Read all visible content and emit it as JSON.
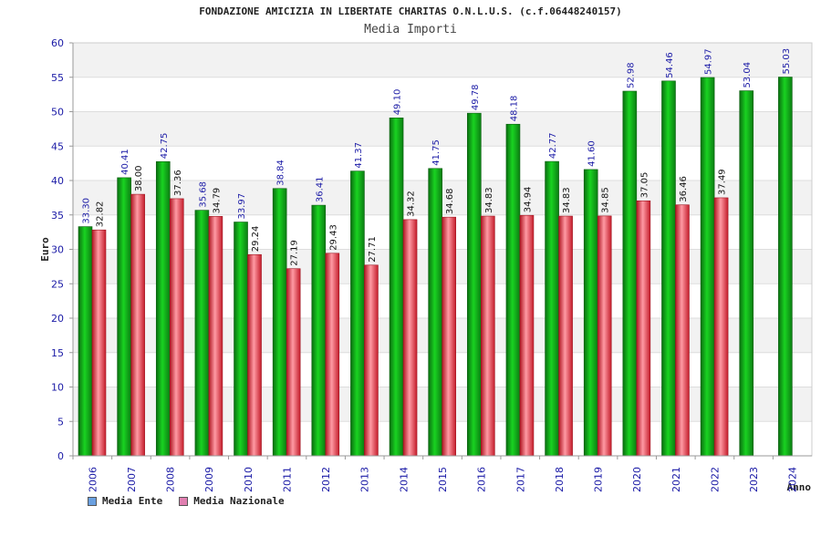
{
  "header": {
    "title": "FONDAZIONE AMICIZIA IN LIBERTATE CHARITAS O.N.L.U.S. (c.f.06448240157)",
    "subtitle": "Media Importi"
  },
  "legend": {
    "items": [
      {
        "label": "Media Ente",
        "color": "#6aa0e0"
      },
      {
        "label": "Media Nazionale",
        "color": "#e07fb0"
      }
    ]
  },
  "colors": {
    "ente_bar": "#13b51b",
    "nazionale_bar": "#ee3344",
    "axis_text": "#1a1aa6",
    "band": "#f2f2f2"
  },
  "chart_data": {
    "type": "bar",
    "title": "FONDAZIONE AMICIZIA IN LIBERTATE CHARITAS O.N.L.U.S. (c.f.06448240157)",
    "subtitle": "Media Importi",
    "xlabel": "Anno",
    "ylabel": "Euro",
    "ylim": [
      0,
      60
    ],
    "yticks": [
      0,
      5,
      10,
      15,
      20,
      25,
      30,
      35,
      40,
      45,
      50,
      55,
      60
    ],
    "grid": true,
    "legend_position": "bottom-left",
    "categories": [
      "2006",
      "2007",
      "2008",
      "2009",
      "2010",
      "2011",
      "2012",
      "2013",
      "2014",
      "2015",
      "2016",
      "2017",
      "2018",
      "2019",
      "2020",
      "2021",
      "2022",
      "2023",
      "2024"
    ],
    "series": [
      {
        "name": "Media Ente",
        "values": [
          33.3,
          40.41,
          42.75,
          35.68,
          33.97,
          38.84,
          36.41,
          41.37,
          49.1,
          41.75,
          49.78,
          48.18,
          42.77,
          41.6,
          52.98,
          54.46,
          54.97,
          53.04,
          55.03
        ],
        "labels": [
          "33.30",
          "40.41",
          "42.75",
          "35.68",
          "33.97",
          "38.84",
          "36.41",
          "41.37",
          "49.10",
          "41.75",
          "49.78",
          "48.18",
          "42.77",
          "41.60",
          "52.98",
          "54.46",
          "54.97",
          "53.04",
          "55.03"
        ]
      },
      {
        "name": "Media Nazionale",
        "values": [
          32.82,
          38.0,
          37.36,
          34.79,
          29.24,
          27.19,
          29.43,
          27.71,
          34.32,
          34.68,
          34.83,
          34.94,
          34.83,
          34.85,
          37.05,
          36.46,
          37.49,
          null,
          null
        ],
        "labels": [
          "32.82",
          "38.00",
          "37.36",
          "34.79",
          "29.24",
          "27.19",
          "29.43",
          "27.71",
          "34.32",
          "34.68",
          "34.83",
          "34.94",
          "34.83",
          "34.85",
          "37.05",
          "36.46",
          "37.49",
          null,
          null
        ]
      }
    ]
  }
}
